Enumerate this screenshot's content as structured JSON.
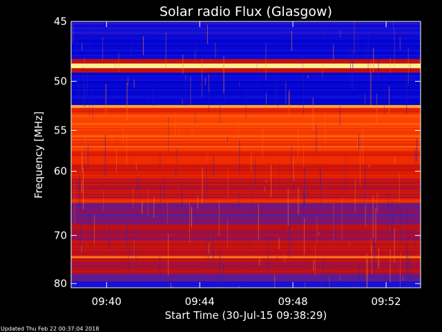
{
  "chart_data": {
    "type": "heatmap",
    "title": "Solar radio Flux (Glasgow)",
    "xlabel": "Start Time (30-Jul-15 09:38:29)",
    "ylabel": "Frequency [MHz]",
    "x_ticks": [
      "09:40",
      "09:44",
      "09:48",
      "09:52"
    ],
    "x_tick_values_min": [
      1.52,
      5.52,
      9.52,
      13.52
    ],
    "x_range_min": [
      0,
      15.0
    ],
    "y_ticks": [
      45,
      50,
      55,
      60,
      70,
      80
    ],
    "y_scale": "reciprocal",
    "ylim": [
      45,
      81
    ],
    "grid": false,
    "colormap": [
      "#0000c8",
      "#1010e0",
      "#5020a0",
      "#8a1060",
      "#c01010",
      "#e82000",
      "#ff4a00",
      "#ffa030",
      "#ffffa0"
    ],
    "bands": [
      {
        "from": 45.0,
        "to": 46.0,
        "level": 0.12
      },
      {
        "from": 46.0,
        "to": 48.0,
        "level": 0.05
      },
      {
        "from": 48.0,
        "to": 48.4,
        "level": 0.45
      },
      {
        "from": 48.4,
        "to": 48.8,
        "level": 1.0
      },
      {
        "from": 48.8,
        "to": 49.2,
        "level": 0.55
      },
      {
        "from": 49.2,
        "to": 52.3,
        "level": 0.06
      },
      {
        "from": 52.3,
        "to": 52.6,
        "level": 0.9
      },
      {
        "from": 52.6,
        "to": 53.2,
        "level": 0.62
      },
      {
        "from": 53.2,
        "to": 57.5,
        "level": 0.72
      },
      {
        "from": 57.5,
        "to": 61.0,
        "level": 0.6
      },
      {
        "from": 61.0,
        "to": 64.0,
        "level": 0.5
      },
      {
        "from": 64.0,
        "to": 64.6,
        "level": 0.66
      },
      {
        "from": 64.6,
        "to": 68.0,
        "level": 0.34
      },
      {
        "from": 68.0,
        "to": 71.0,
        "level": 0.42
      },
      {
        "from": 71.0,
        "to": 74.0,
        "level": 0.5
      },
      {
        "from": 74.0,
        "to": 74.4,
        "level": 0.74
      },
      {
        "from": 74.4,
        "to": 78.0,
        "level": 0.45
      },
      {
        "from": 78.0,
        "to": 79.5,
        "level": 0.28
      },
      {
        "from": 79.5,
        "to": 81.0,
        "level": 0.12
      }
    ]
  },
  "footer": {
    "updated": "Updated Thu Feb 22 00:37:04 2018"
  }
}
